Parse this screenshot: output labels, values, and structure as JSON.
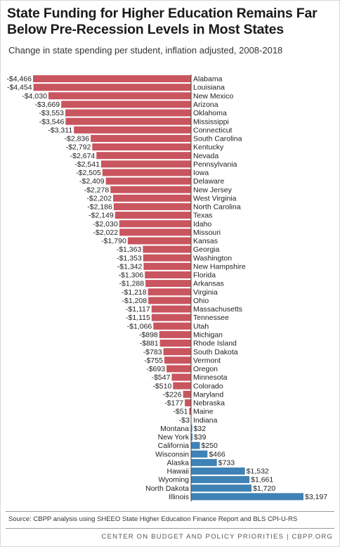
{
  "header": {
    "title": "State Funding for Higher Education Remains Far Below Pre-Recession Levels in Most States",
    "subtitle": "Change in state spending per student, inflation adjusted, 2008-2018"
  },
  "footer": {
    "source": "Source: CBPP analysis using SHEEO State Higher Education Finance Report and BLS CPI-U-RS",
    "credit": "CENTER ON BUDGET AND POLICY PRIORITIES | CBPP.ORG"
  },
  "colors": {
    "negative": "#c9555f",
    "positive": "#3f82b5",
    "axis": "#444444"
  },
  "chart_data": {
    "type": "bar",
    "orientation": "horizontal",
    "title": "State Funding for Higher Education Remains Far Below Pre-Recession Levels in Most States",
    "subtitle": "Change in state spending per student, inflation adjusted, 2008-2018",
    "categories": [
      "Alabama",
      "Louisiana",
      "New Mexico",
      "Arizona",
      "Oklahoma",
      "Mississippi",
      "Connecticut",
      "South Carolina",
      "Kentucky",
      "Nevada",
      "Pennsylvania",
      "Iowa",
      "Delaware",
      "New Jersey",
      "West Virginia",
      "North Carolina",
      "Texas",
      "Idaho",
      "Missouri",
      "Kansas",
      "Georgia",
      "Washington",
      "New Hampshire",
      "Florida",
      "Arkansas",
      "Virginia",
      "Ohio",
      "Massachusetts",
      "Tennessee",
      "Utah",
      "Michigan",
      "Rhode Island",
      "South Dakota",
      "Vermont",
      "Oregon",
      "Minnesota",
      "Colorado",
      "Maryland",
      "Nebraska",
      "Maine",
      "Indiana",
      "Montana",
      "New York",
      "California",
      "Wisconsin",
      "Alaska",
      "Hawaii",
      "Wyoming",
      "North Dakota",
      "Illinois"
    ],
    "values": [
      -4466,
      -4454,
      -4030,
      -3669,
      -3553,
      -3546,
      -3311,
      -2836,
      -2792,
      -2674,
      -2541,
      -2505,
      -2409,
      -2278,
      -2202,
      -2186,
      -2149,
      -2030,
      -2022,
      -1790,
      -1363,
      -1353,
      -1342,
      -1306,
      -1288,
      -1218,
      -1208,
      -1117,
      -1115,
      -1066,
      -898,
      -881,
      -783,
      -755,
      -693,
      -547,
      -510,
      -226,
      -177,
      -51,
      -3,
      32,
      39,
      250,
      466,
      733,
      1532,
      1661,
      1720,
      3197
    ],
    "value_labels": [
      "-$4,466",
      "-$4,454",
      "-$4,030",
      "-$3,669",
      "-$3,553",
      "-$3,546",
      "-$3,311",
      "-$2,836",
      "-$2,792",
      "-$2,674",
      "-$2,541",
      "-$2,505",
      "-$2,409",
      "-$2,278",
      "-$2,202",
      "-$2,186",
      "-$2,149",
      "-$2,030",
      "-$2,022",
      "-$1,790",
      "-$1,363",
      "-$1,353",
      "-$1,342",
      "-$1,306",
      "-$1,288",
      "-$1,218",
      "-$1,208",
      "-$1,117",
      "-$1,115",
      "-$1,066",
      "-$898",
      "-$881",
      "-$783",
      "-$755",
      "-$693",
      "-$547",
      "-$510",
      "-$226",
      "-$177",
      "-$51",
      "-$3",
      "$32",
      "$39",
      "$250",
      "$466",
      "$733",
      "$1,532",
      "$1,661",
      "$1,720",
      "$3,197"
    ],
    "xlim": [
      -4466,
      3197
    ],
    "grid": false,
    "legend": "none"
  }
}
